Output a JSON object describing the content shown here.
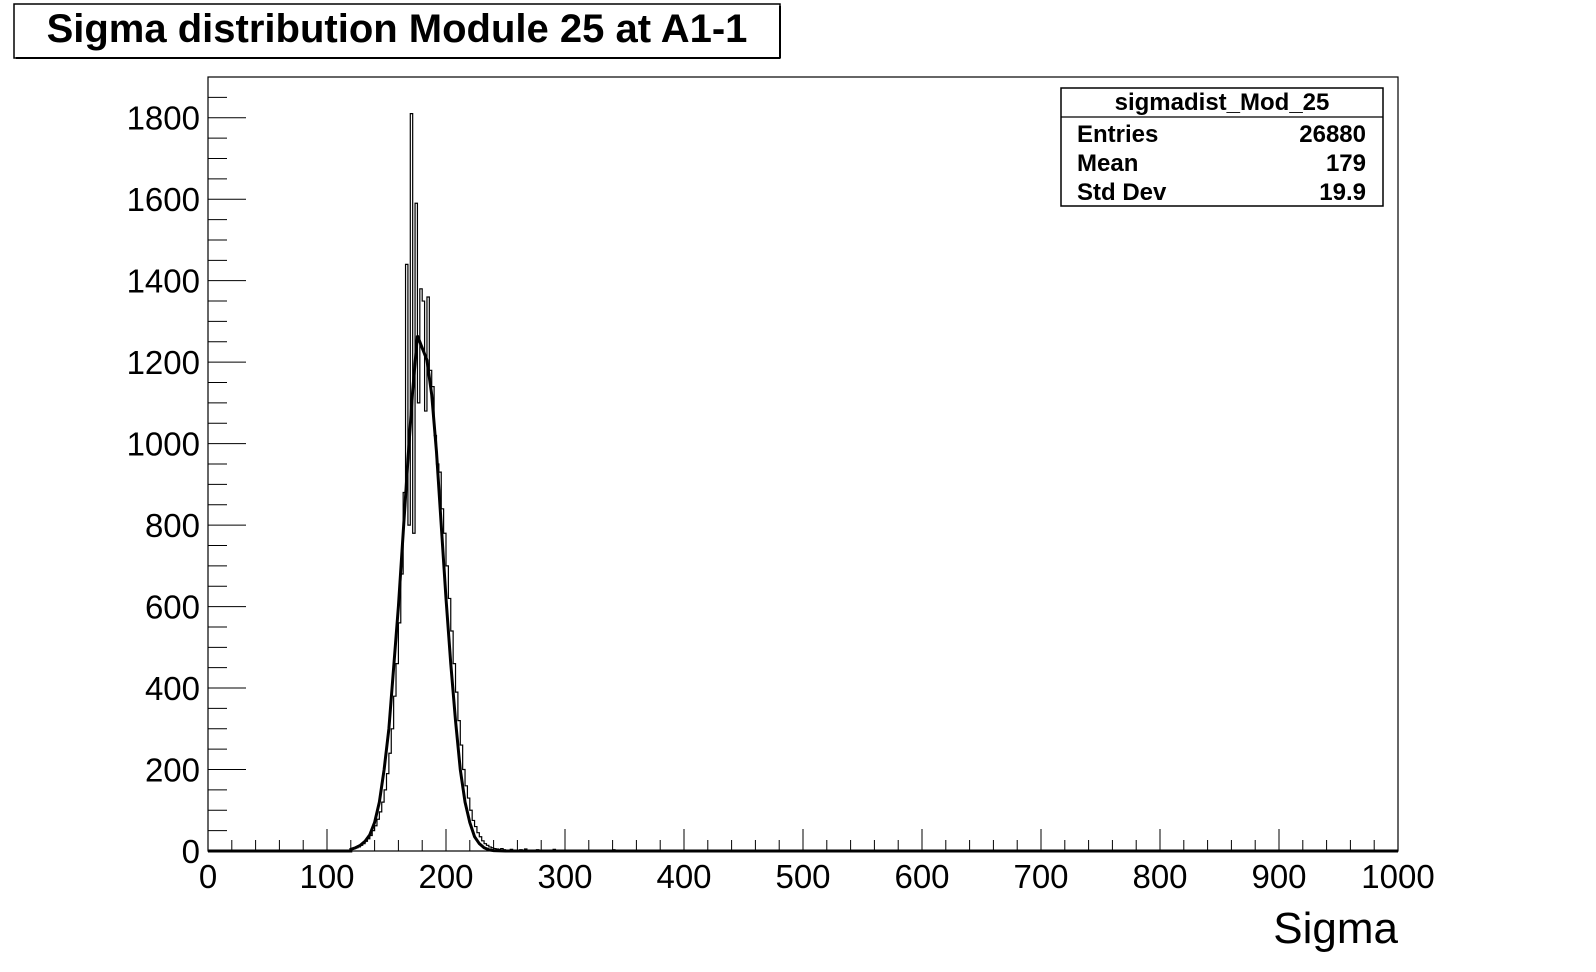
{
  "chart_data": {
    "type": "bar",
    "title": "Sigma distribution Module 25 at A1-1",
    "xlabel": "Sigma",
    "ylabel": "",
    "xlim": [
      0,
      1000
    ],
    "ylim": [
      0,
      1900
    ],
    "x_ticks": [
      "0",
      "100",
      "200",
      "300",
      "400",
      "500",
      "600",
      "700",
      "800",
      "900",
      "1000"
    ],
    "y_ticks": [
      "0",
      "200",
      "400",
      "600",
      "800",
      "1000",
      "1200",
      "1400",
      "1600",
      "1800"
    ],
    "bin_width": 2,
    "grid": false,
    "stats": {
      "name": "sigmadist_Mod_25",
      "rows": [
        {
          "label": "Entries",
          "value": "26880"
        },
        {
          "label": "Mean",
          "value": "179"
        },
        {
          "label": "Std Dev",
          "value": "19.9"
        }
      ]
    },
    "series": [
      {
        "type": "histogram",
        "bins": [
          [
            120,
            4
          ],
          [
            122,
            6
          ],
          [
            124,
            8
          ],
          [
            126,
            10
          ],
          [
            128,
            14
          ],
          [
            130,
            18
          ],
          [
            132,
            24
          ],
          [
            134,
            30
          ],
          [
            136,
            38
          ],
          [
            138,
            50
          ],
          [
            140,
            62
          ],
          [
            142,
            78
          ],
          [
            144,
            96
          ],
          [
            146,
            120
          ],
          [
            148,
            150
          ],
          [
            150,
            190
          ],
          [
            152,
            240
          ],
          [
            154,
            300
          ],
          [
            156,
            380
          ],
          [
            158,
            460
          ],
          [
            160,
            560
          ],
          [
            162,
            680
          ],
          [
            164,
            880
          ],
          [
            166,
            1440
          ],
          [
            168,
            800
          ],
          [
            170,
            1810
          ],
          [
            172,
            780
          ],
          [
            174,
            1590
          ],
          [
            176,
            1100
          ],
          [
            178,
            1380
          ],
          [
            180,
            1350
          ],
          [
            182,
            1080
          ],
          [
            184,
            1360
          ],
          [
            186,
            1180
          ],
          [
            188,
            1140
          ],
          [
            190,
            1020
          ],
          [
            192,
            950
          ],
          [
            194,
            930
          ],
          [
            196,
            840
          ],
          [
            198,
            780
          ],
          [
            200,
            700
          ],
          [
            202,
            620
          ],
          [
            204,
            540
          ],
          [
            206,
            460
          ],
          [
            208,
            390
          ],
          [
            210,
            320
          ],
          [
            212,
            260
          ],
          [
            214,
            200
          ],
          [
            216,
            160
          ],
          [
            218,
            130
          ],
          [
            220,
            100
          ],
          [
            222,
            75
          ],
          [
            224,
            60
          ],
          [
            226,
            45
          ],
          [
            228,
            35
          ],
          [
            230,
            25
          ],
          [
            232,
            18
          ],
          [
            234,
            14
          ],
          [
            236,
            10
          ],
          [
            238,
            8
          ],
          [
            240,
            6
          ],
          [
            242,
            5
          ],
          [
            244,
            4
          ],
          [
            246,
            6
          ],
          [
            248,
            3
          ],
          [
            250,
            2
          ],
          [
            254,
            4
          ],
          [
            258,
            2
          ],
          [
            262,
            3
          ],
          [
            266,
            5
          ],
          [
            270,
            2
          ],
          [
            276,
            3
          ],
          [
            282,
            1
          ],
          [
            290,
            4
          ],
          [
            296,
            2
          ],
          [
            304,
            1
          ],
          [
            310,
            2
          ],
          [
            320,
            1
          ],
          [
            330,
            2
          ],
          [
            340,
            3
          ],
          [
            350,
            1
          ]
        ]
      },
      {
        "type": "fit",
        "points": [
          [
            120,
            4
          ],
          [
            124,
            8
          ],
          [
            128,
            14
          ],
          [
            132,
            24
          ],
          [
            136,
            40
          ],
          [
            140,
            70
          ],
          [
            144,
            120
          ],
          [
            148,
            200
          ],
          [
            152,
            300
          ],
          [
            156,
            450
          ],
          [
            160,
            600
          ],
          [
            164,
            780
          ],
          [
            168,
            960
          ],
          [
            172,
            1130
          ],
          [
            176,
            1265
          ],
          [
            178,
            1250
          ],
          [
            180,
            1235
          ],
          [
            184,
            1205
          ],
          [
            188,
            1120
          ],
          [
            192,
            980
          ],
          [
            196,
            800
          ],
          [
            200,
            620
          ],
          [
            204,
            460
          ],
          [
            208,
            320
          ],
          [
            212,
            200
          ],
          [
            216,
            120
          ],
          [
            220,
            70
          ],
          [
            224,
            35
          ],
          [
            228,
            18
          ],
          [
            232,
            8
          ],
          [
            236,
            3
          ],
          [
            240,
            1
          ],
          [
            250,
            0
          ],
          [
            1000,
            0
          ]
        ]
      }
    ]
  }
}
